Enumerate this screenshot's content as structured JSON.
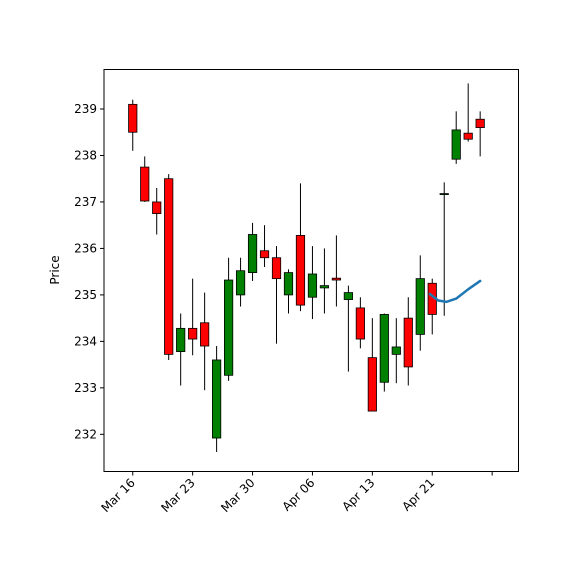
{
  "chart_data": {
    "type": "candlestick",
    "title": "",
    "xlabel": "",
    "ylabel": "Price",
    "ylim": [
      231.2,
      239.85
    ],
    "yticks": [
      232,
      233,
      234,
      235,
      236,
      237,
      238,
      239
    ],
    "xtick_labels": [
      "Mar 16",
      "Mar 23",
      "Mar 30",
      "Apr 06",
      "Apr 13",
      "Apr 21",
      ""
    ],
    "xtick_positions": [
      0,
      5,
      10,
      15,
      20,
      25,
      30
    ],
    "xlim": [
      -2.4,
      32.2
    ],
    "colors": {
      "up": "#008000",
      "down": "#ff0000",
      "wick": "#000000",
      "line": "#1f77b4"
    },
    "candles": [
      {
        "x": 0,
        "open": 239.1,
        "high": 239.2,
        "low": 238.1,
        "close": 238.5
      },
      {
        "x": 1,
        "open": 237.75,
        "high": 237.98,
        "low": 237.0,
        "close": 237.02
      },
      {
        "x": 2,
        "open": 237.0,
        "high": 237.3,
        "low": 236.3,
        "close": 236.75
      },
      {
        "x": 3,
        "open": 237.5,
        "high": 237.6,
        "low": 233.6,
        "close": 233.72
      },
      {
        "x": 4,
        "open": 233.78,
        "high": 234.6,
        "low": 233.05,
        "close": 234.28
      },
      {
        "x": 5,
        "open": 234.28,
        "high": 235.35,
        "low": 233.7,
        "close": 234.05
      },
      {
        "x": 6,
        "open": 234.4,
        "high": 235.05,
        "low": 232.95,
        "close": 233.9
      },
      {
        "x": 7,
        "open": 231.92,
        "high": 233.9,
        "low": 231.62,
        "close": 233.6
      },
      {
        "x": 8,
        "open": 233.27,
        "high": 235.8,
        "low": 233.15,
        "close": 235.32
      },
      {
        "x": 9,
        "open": 235.0,
        "high": 235.8,
        "low": 234.75,
        "close": 235.52
      },
      {
        "x": 10,
        "open": 235.48,
        "high": 236.55,
        "low": 235.3,
        "close": 236.3
      },
      {
        "x": 11,
        "open": 235.95,
        "high": 236.5,
        "low": 235.6,
        "close": 235.8
      },
      {
        "x": 12,
        "open": 235.8,
        "high": 236.05,
        "low": 233.95,
        "close": 235.35
      },
      {
        "x": 13,
        "open": 235.0,
        "high": 235.55,
        "low": 234.6,
        "close": 235.48
      },
      {
        "x": 14,
        "open": 236.28,
        "high": 237.4,
        "low": 234.65,
        "close": 234.78
      },
      {
        "x": 15,
        "open": 234.95,
        "high": 236.05,
        "low": 234.48,
        "close": 235.45
      },
      {
        "x": 16,
        "open": 235.15,
        "high": 236.0,
        "low": 234.6,
        "close": 235.2
      },
      {
        "x": 17,
        "open": 235.36,
        "high": 236.28,
        "low": 234.75,
        "close": 235.32
      },
      {
        "x": 18,
        "open": 234.9,
        "high": 235.2,
        "low": 233.35,
        "close": 235.05
      },
      {
        "x": 19,
        "open": 234.72,
        "high": 234.95,
        "low": 233.85,
        "close": 234.05
      },
      {
        "x": 20,
        "open": 233.65,
        "high": 234.5,
        "low": 232.5,
        "close": 232.5
      },
      {
        "x": 21,
        "open": 233.12,
        "high": 234.6,
        "low": 232.92,
        "close": 234.58
      },
      {
        "x": 22,
        "open": 233.72,
        "high": 234.5,
        "low": 233.1,
        "close": 233.88
      },
      {
        "x": 23,
        "open": 234.5,
        "high": 234.95,
        "low": 233.05,
        "close": 233.45
      },
      {
        "x": 24,
        "open": 234.15,
        "high": 235.85,
        "low": 233.8,
        "close": 235.35
      },
      {
        "x": 25,
        "open": 235.25,
        "high": 235.35,
        "low": 234.15,
        "close": 234.58
      },
      {
        "x": 26,
        "open": 237.18,
        "high": 237.42,
        "low": 234.55,
        "close": 237.18
      },
      {
        "x": 27,
        "open": 237.92,
        "high": 238.95,
        "low": 237.82,
        "close": 238.55
      },
      {
        "x": 28,
        "open": 238.48,
        "high": 239.55,
        "low": 238.3,
        "close": 238.35
      },
      {
        "x": 29,
        "open": 238.78,
        "high": 238.95,
        "low": 237.98,
        "close": 238.6
      }
    ],
    "series": [
      {
        "type": "line",
        "x": [
          24.8,
          25.5,
          26.2,
          27.0,
          28.0,
          29.0
        ],
        "values": [
          235.02,
          234.88,
          234.85,
          234.92,
          235.12,
          235.3
        ]
      }
    ]
  }
}
